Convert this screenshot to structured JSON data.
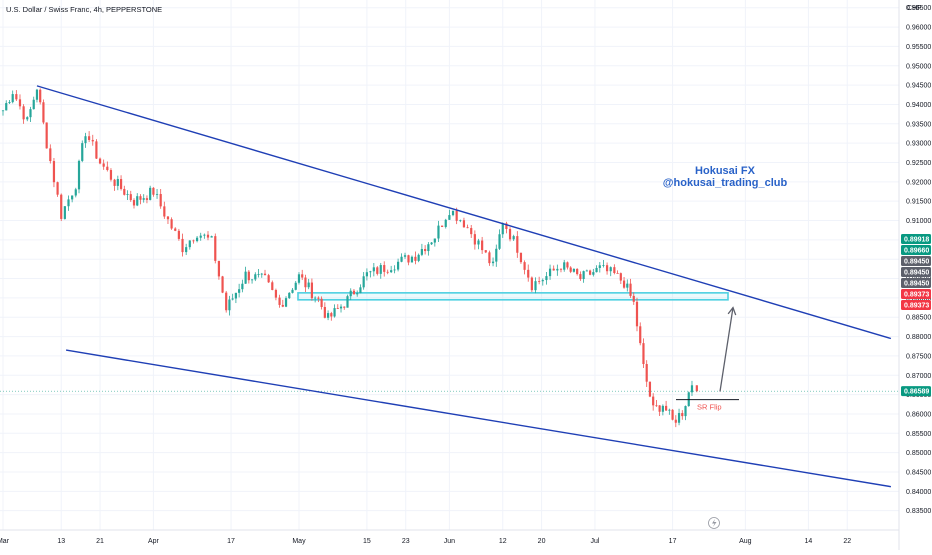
{
  "header": {
    "symbol_title": "U.S. Dollar / Swiss Franc, 4h, PEPPERSTONE"
  },
  "watermark": {
    "line1": "Hokusai FX",
    "line2": "@hokusai_trading_club"
  },
  "colors": {
    "up": "#26a69a",
    "down": "#ef5350",
    "channel": "#1f3fb5",
    "zone": "#4dd0e1",
    "tag_green": "#089981",
    "tag_gray": "#5d606b",
    "tag_red": "#f23645",
    "watermark": "#2962c8"
  },
  "chart_data": {
    "type": "candlestick",
    "currency": "CHF",
    "ylim": [
      0.83,
      0.967
    ],
    "y_ticks": [
      "0.96500",
      "0.96000",
      "0.95500",
      "0.95000",
      "0.94500",
      "0.94000",
      "0.93500",
      "0.93000",
      "0.92500",
      "0.92000",
      "0.91500",
      "0.91000",
      "0.90500",
      "0.90000",
      "0.89500",
      "0.89000",
      "0.88500",
      "0.88000",
      "0.87500",
      "0.87000",
      "0.86500",
      "0.86000",
      "0.85500",
      "0.85000",
      "0.84500",
      "0.84000",
      "0.83500"
    ],
    "x_ticks": [
      "Mar",
      "13",
      "21",
      "Apr",
      "17",
      "May",
      "15",
      "23",
      "Jun",
      "12",
      "20",
      "Jul",
      "17",
      "Aug",
      "14",
      "22"
    ],
    "price_tags": [
      {
        "value": 0.89918,
        "label": "0.89918",
        "style": "green"
      },
      {
        "value": 0.8966,
        "label": "0.89660",
        "style": "green"
      },
      {
        "value": 0.8945,
        "label": "0.89450",
        "style": "gray"
      },
      {
        "value": 0.8945,
        "label": "0.89450",
        "style": "gray"
      },
      {
        "value": 0.8945,
        "label": "0.89450",
        "style": "gray"
      },
      {
        "value": 0.89373,
        "label": "0.89373",
        "style": "red"
      },
      {
        "value": 0.89373,
        "label": "0.89373",
        "style": "red"
      },
      {
        "value": 0.86589,
        "label": "0.86589",
        "style": "green"
      }
    ],
    "last_price": 0.86589,
    "annotations": {
      "sr_flip_label": "SR Flip",
      "sr_flip_level": 0.8637,
      "resistance_zone": [
        0.8895,
        0.8913
      ],
      "channel_upper": [
        {
          "x": "Mar 08",
          "y": 0.9448
        },
        {
          "x": "Aug 31",
          "y": 0.8795
        }
      ],
      "channel_lower": [
        {
          "x": "Mar 14",
          "y": 0.8765
        },
        {
          "x": "Aug 31",
          "y": 0.8412
        }
      ],
      "target_arrow": [
        {
          "x": "Jul 23",
          "y": 0.8658
        },
        {
          "x": "Jul 25",
          "y": 0.8875
        }
      ]
    },
    "path_points": [
      {
        "x": "Mar 01",
        "y": 0.9385
      },
      {
        "x": "Mar 03",
        "y": 0.9435
      },
      {
        "x": "Mar 06",
        "y": 0.9355
      },
      {
        "x": "Mar 08",
        "y": 0.9445
      },
      {
        "x": "Mar 10",
        "y": 0.93
      },
      {
        "x": "Mar 13",
        "y": 0.9115
      },
      {
        "x": "Mar 16",
        "y": 0.9195
      },
      {
        "x": "Mar 18",
        "y": 0.933
      },
      {
        "x": "Mar 21",
        "y": 0.925
      },
      {
        "x": "Mar 24",
        "y": 0.92
      },
      {
        "x": "Mar 28",
        "y": 0.915
      },
      {
        "x": "Apr 01",
        "y": 0.9175
      },
      {
        "x": "Apr 04",
        "y": 0.91
      },
      {
        "x": "Apr 07",
        "y": 0.903
      },
      {
        "x": "Apr 10",
        "y": 0.907
      },
      {
        "x": "Apr 13",
        "y": 0.9045
      },
      {
        "x": "Apr 16",
        "y": 0.887
      },
      {
        "x": "Apr 20",
        "y": 0.896
      },
      {
        "x": "Apr 24",
        "y": 0.8945
      },
      {
        "x": "Apr 27",
        "y": 0.888
      },
      {
        "x": "May 01",
        "y": 0.8955
      },
      {
        "x": "May 05",
        "y": 0.8895
      },
      {
        "x": "May 07",
        "y": 0.8845
      },
      {
        "x": "May 11",
        "y": 0.8895
      },
      {
        "x": "May 15",
        "y": 0.896
      },
      {
        "x": "May 20",
        "y": 0.8985
      },
      {
        "x": "May 25",
        "y": 0.901
      },
      {
        "x": "May 29",
        "y": 0.906
      },
      {
        "x": "Jun 01",
        "y": 0.913
      },
      {
        "x": "Jun 04",
        "y": 0.9095
      },
      {
        "x": "Jun 07",
        "y": 0.904
      },
      {
        "x": "Jun 10",
        "y": 0.898
      },
      {
        "x": "Jun 12",
        "y": 0.91
      },
      {
        "x": "Jun 15",
        "y": 0.903
      },
      {
        "x": "Jun 18",
        "y": 0.8935
      },
      {
        "x": "Jun 21",
        "y": 0.8955
      },
      {
        "x": "Jun 24",
        "y": 0.8985
      },
      {
        "x": "Jun 28",
        "y": 0.895
      },
      {
        "x": "Jul 02",
        "y": 0.8975
      },
      {
        "x": "Jul 05",
        "y": 0.896
      },
      {
        "x": "Jul 07",
        "y": 0.894
      },
      {
        "x": "Jul 09",
        "y": 0.8885
      },
      {
        "x": "Jul 11",
        "y": 0.872
      },
      {
        "x": "Jul 13",
        "y": 0.861
      },
      {
        "x": "Jul 15",
        "y": 0.8625
      },
      {
        "x": "Jul 17",
        "y": 0.858
      },
      {
        "x": "Jul 19",
        "y": 0.8605
      },
      {
        "x": "Jul 21",
        "y": 0.868
      },
      {
        "x": "Jul 22",
        "y": 0.8659
      }
    ]
  }
}
